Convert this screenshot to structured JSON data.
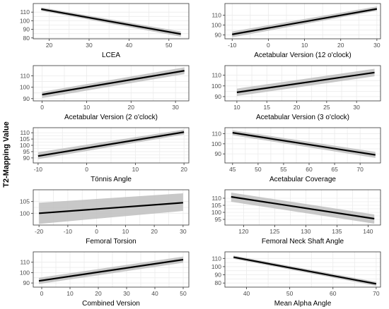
{
  "figure": {
    "ylabel": "T2-Mapping Value"
  },
  "style": {
    "line_color": "#000000",
    "band_color": "#bebebe",
    "grid_color": "#ebebeb",
    "frame_color": "#333333",
    "background": "#ffffff"
  },
  "chart_data": [
    {
      "type": "line",
      "xlabel": "LCEA",
      "xlim": [
        16,
        55
      ],
      "ylim": [
        79,
        120
      ],
      "xticks": [
        20,
        30,
        40,
        50
      ],
      "yticks": [
        80,
        90,
        100,
        110
      ],
      "grid": true,
      "series": [
        {
          "x": [
            18,
            53
          ],
          "y": [
            113.5,
            84.5
          ],
          "ci_low": [
            111.5,
            81.5
          ],
          "ci_high": [
            115.5,
            87.5
          ]
        }
      ]
    },
    {
      "type": "line",
      "xlabel": "Acetabular Version (12 o'clock)",
      "xlim": [
        -12,
        31
      ],
      "ylim": [
        86,
        122
      ],
      "xticks": [
        -10,
        0,
        10,
        20,
        30
      ],
      "yticks": [
        90,
        100,
        110
      ],
      "grid": true,
      "series": [
        {
          "x": [
            -10,
            30
          ],
          "y": [
            90.5,
            116.5
          ],
          "ci_low": [
            87.5,
            114.5
          ],
          "ci_high": [
            93.5,
            119
          ]
        }
      ]
    },
    {
      "type": "line",
      "xlabel": "Acetabular Version (2 o'clock)",
      "xlim": [
        -2,
        33
      ],
      "ylim": [
        88,
        119
      ],
      "xticks": [
        0,
        10,
        20,
        30
      ],
      "yticks": [
        90,
        100,
        110
      ],
      "grid": true,
      "series": [
        {
          "x": [
            0,
            32
          ],
          "y": [
            93.5,
            114.5
          ],
          "ci_low": [
            90.5,
            111.5
          ],
          "ci_high": [
            96,
            117.5
          ]
        }
      ]
    },
    {
      "type": "line",
      "xlabel": "Acetabular Version (3 o'clock)",
      "xlim": [
        8,
        34
      ],
      "ylim": [
        86,
        119
      ],
      "xticks": [
        10,
        15,
        20,
        25,
        30
      ],
      "yticks": [
        90,
        100,
        110
      ],
      "grid": true,
      "series": [
        {
          "x": [
            10,
            33
          ],
          "y": [
            94,
            112.5
          ],
          "ci_low": [
            90.5,
            109
          ],
          "ci_high": [
            97.5,
            116
          ]
        }
      ]
    },
    {
      "type": "line",
      "xlabel": "Tönnis Angle",
      "xlim": [
        -11,
        21
      ],
      "ylim": [
        86,
        114
      ],
      "xticks": [
        -10,
        0,
        10,
        20
      ],
      "yticks": [
        90,
        95,
        100,
        105,
        110
      ],
      "grid": true,
      "series": [
        {
          "x": [
            -10,
            20
          ],
          "y": [
            91.5,
            110.5
          ],
          "ci_low": [
            89,
            108.5
          ],
          "ci_high": [
            94.5,
            112.5
          ]
        }
      ]
    },
    {
      "type": "line",
      "xlabel": "Acetabular Coverage",
      "xlim": [
        43.5,
        74
      ],
      "ylim": [
        81,
        116
      ],
      "xticks": [
        45,
        50,
        55,
        60,
        65,
        70
      ],
      "yticks": [
        90,
        100,
        110
      ],
      "grid": true,
      "series": [
        {
          "x": [
            45,
            73
          ],
          "y": [
            111,
            89
          ],
          "ci_low": [
            108.5,
            86
          ],
          "ci_high": [
            113.5,
            92
          ]
        }
      ]
    },
    {
      "type": "line",
      "xlabel": "Femoral Torsion",
      "xlim": [
        -22,
        32
      ],
      "ylim": [
        95,
        110
      ],
      "xticks": [
        -20,
        -10,
        0,
        10,
        20,
        30
      ],
      "yticks": [
        100,
        105
      ],
      "grid": true,
      "series": [
        {
          "x": [
            -20,
            30
          ],
          "y": [
            100,
            104.5
          ],
          "ci_low": [
            95.5,
            101
          ],
          "ci_high": [
            104.5,
            108.5
          ]
        }
      ]
    },
    {
      "type": "line",
      "xlabel": "Femoral Neck Shaft Angle",
      "xlim": [
        117,
        142
      ],
      "ylim": [
        91,
        116
      ],
      "xticks": [
        120,
        125,
        130,
        135,
        140
      ],
      "yticks": [
        95,
        100,
        105,
        110
      ],
      "grid": true,
      "series": [
        {
          "x": [
            118,
            141
          ],
          "y": [
            111,
            95.5
          ],
          "ci_low": [
            107.5,
            92
          ],
          "ci_high": [
            114,
            98.5
          ]
        }
      ]
    },
    {
      "type": "line",
      "xlabel": "Combined Version",
      "xlim": [
        -3,
        52
      ],
      "ylim": [
        86,
        120
      ],
      "xticks": [
        0,
        10,
        20,
        30,
        40,
        50
      ],
      "yticks": [
        90,
        100,
        110
      ],
      "grid": true,
      "series": [
        {
          "x": [
            -1,
            50
          ],
          "y": [
            92,
            112.5
          ],
          "ci_low": [
            89,
            109.5
          ],
          "ci_high": [
            95,
            115.5
          ]
        }
      ]
    },
    {
      "type": "line",
      "xlabel": "Mean Alpha Angle",
      "xlim": [
        35,
        71
      ],
      "ylim": [
        75,
        118
      ],
      "xticks": [
        40,
        50,
        60,
        70
      ],
      "yticks": [
        80,
        90,
        100,
        110
      ],
      "grid": true,
      "series": [
        {
          "x": [
            37,
            70
          ],
          "y": [
            111.5,
            79
          ],
          "ci_low": [
            109.5,
            76.5
          ],
          "ci_high": [
            113.5,
            81.5
          ]
        }
      ]
    }
  ]
}
